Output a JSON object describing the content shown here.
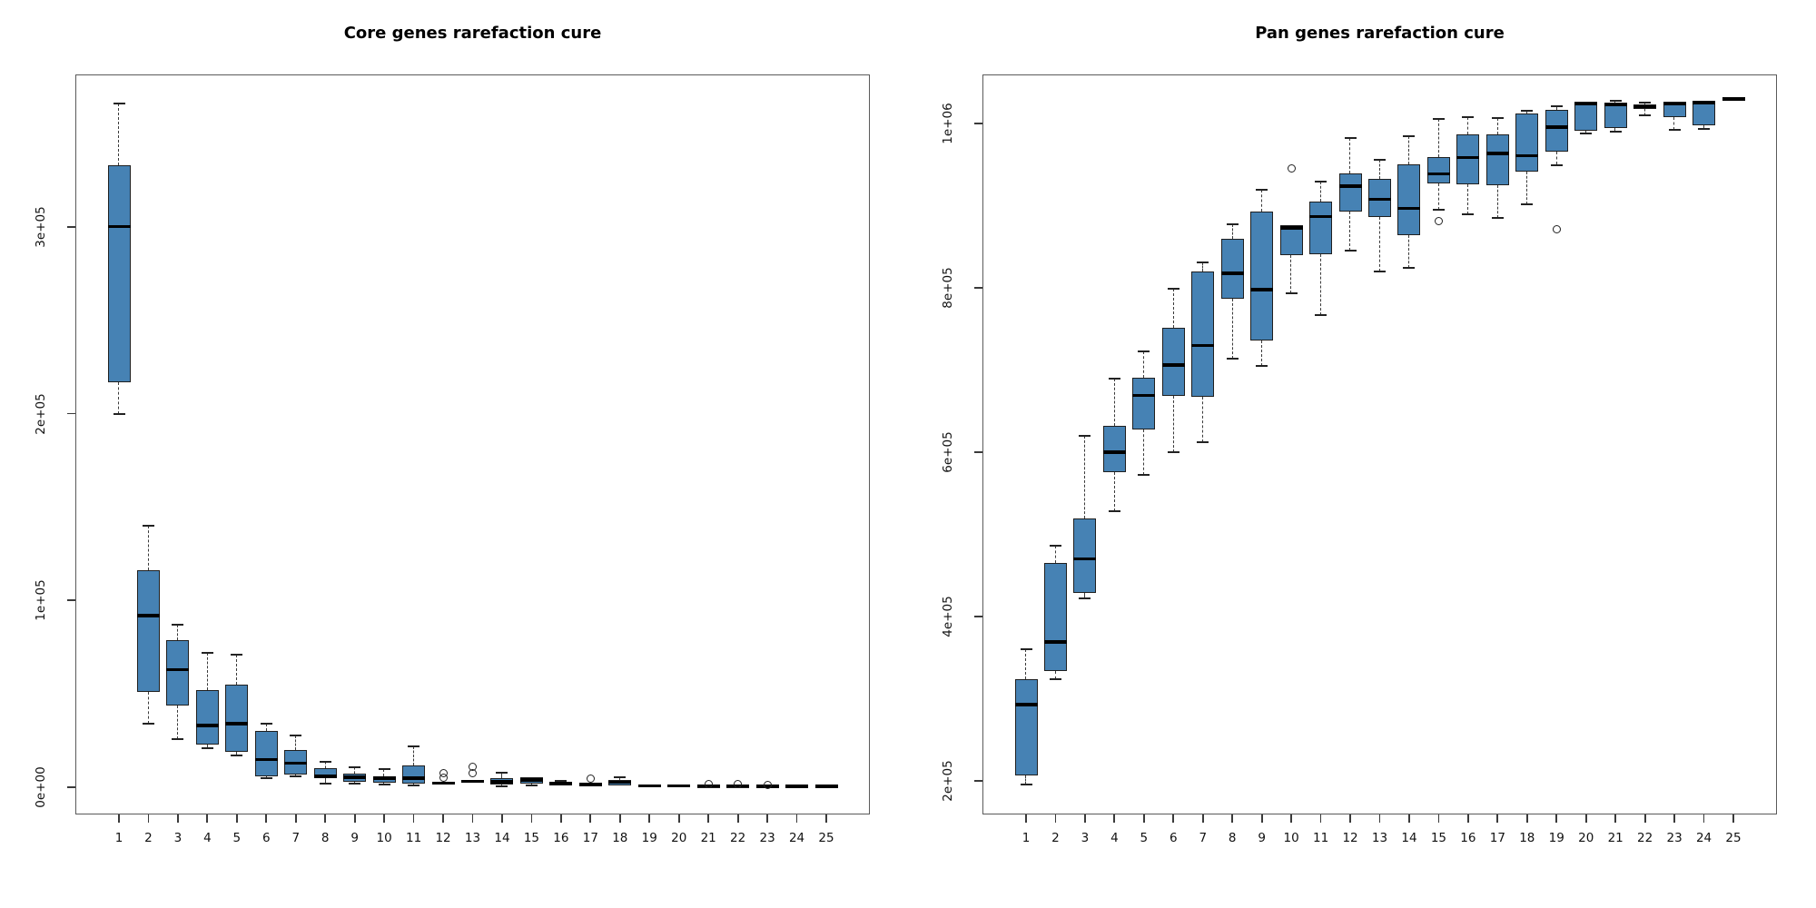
{
  "page": {
    "background": "#ffffff"
  },
  "chart_data": [
    {
      "type": "boxplot",
      "title": "Core genes rarefaction cure",
      "xlabel": "",
      "ylabel": "",
      "categories": [
        "1",
        "2",
        "3",
        "4",
        "5",
        "6",
        "7",
        "8",
        "9",
        "10",
        "11",
        "12",
        "13",
        "14",
        "15",
        "16",
        "17",
        "18",
        "19",
        "20",
        "21",
        "22",
        "23",
        "24",
        "25"
      ],
      "y_ticks": {
        "labels": [
          "0e+00",
          "1e+05",
          "2e+05",
          "3e+05"
        ],
        "values": [
          0,
          100000,
          200000,
          300000
        ]
      },
      "ylim": [
        -14500,
        381500
      ],
      "grid": false,
      "legend": "none",
      "colors": {
        "box_fill": "#4682B4",
        "box_border": "#1f1f1f",
        "median": "#000000",
        "whisker": "#3a3a3a",
        "frame": "#5a5a5a",
        "text": "#111111"
      },
      "series": [
        {
          "x": "1",
          "low": 200000,
          "q1": 217000,
          "med": 300000,
          "q3": 333000,
          "high": 366000,
          "outliers": []
        },
        {
          "x": "2",
          "low": 34000,
          "q1": 51000,
          "med": 92000,
          "q3": 116000,
          "high": 140000,
          "outliers": []
        },
        {
          "x": "3",
          "low": 26000,
          "q1": 44000,
          "med": 63000,
          "q3": 79000,
          "high": 87000,
          "outliers": []
        },
        {
          "x": "4",
          "low": 21000,
          "q1": 23000,
          "med": 33000,
          "q3": 52000,
          "high": 72000,
          "outliers": []
        },
        {
          "x": "5",
          "low": 17000,
          "q1": 19000,
          "med": 34000,
          "q3": 55000,
          "high": 71000,
          "outliers": []
        },
        {
          "x": "6",
          "low": 5000,
          "q1": 6000,
          "med": 15000,
          "q3": 30000,
          "high": 34000,
          "outliers": []
        },
        {
          "x": "7",
          "low": 6000,
          "q1": 7000,
          "med": 13000,
          "q3": 20000,
          "high": 28000,
          "outliers": []
        },
        {
          "x": "8",
          "low": 2000,
          "q1": 5000,
          "med": 6000,
          "q3": 10500,
          "high": 13500,
          "outliers": []
        },
        {
          "x": "9",
          "low": 2000,
          "q1": 3000,
          "med": 5500,
          "q3": 7500,
          "high": 11000,
          "outliers": []
        },
        {
          "x": "10",
          "low": 1500,
          "q1": 2500,
          "med": 5000,
          "q3": 6000,
          "high": 10000,
          "outliers": []
        },
        {
          "x": "11",
          "low": 1000,
          "q1": 2000,
          "med": 5000,
          "q3": 11500,
          "high": 22000,
          "outliers": []
        },
        {
          "x": "12",
          "low": 1500,
          "q1": 1800,
          "med": 2200,
          "q3": 2600,
          "high": 3000,
          "outliers": [
            7800,
            5000
          ]
        },
        {
          "x": "13",
          "low": 2500,
          "q1": 2800,
          "med": 3200,
          "q3": 4200,
          "high": 4800,
          "outliers": [
            11000,
            7800
          ]
        },
        {
          "x": "14",
          "low": 500,
          "q1": 1500,
          "med": 3000,
          "q3": 5000,
          "high": 7800,
          "outliers": []
        },
        {
          "x": "15",
          "low": 1000,
          "q1": 2000,
          "med": 4000,
          "q3": 5500,
          "high": 6000,
          "outliers": []
        },
        {
          "x": "16",
          "low": 1000,
          "q1": 1500,
          "med": 2000,
          "q3": 2500,
          "high": 3500,
          "outliers": []
        },
        {
          "x": "17",
          "low": 1200,
          "q1": 1400,
          "med": 1600,
          "q3": 1800,
          "high": 2000,
          "outliers": [
            4500
          ]
        },
        {
          "x": "18",
          "low": 500,
          "q1": 1000,
          "med": 2800,
          "q3": 4000,
          "high": 5500,
          "outliers": []
        },
        {
          "x": "19",
          "low": 600,
          "q1": 700,
          "med": 800,
          "q3": 900,
          "high": 1000,
          "outliers": []
        },
        {
          "x": "20",
          "low": 600,
          "q1": 700,
          "med": 800,
          "q3": 900,
          "high": 1000,
          "outliers": []
        },
        {
          "x": "21",
          "low": 500,
          "q1": 600,
          "med": 700,
          "q3": 800,
          "high": 900,
          "outliers": [
            2000
          ]
        },
        {
          "x": "22",
          "low": 500,
          "q1": 600,
          "med": 700,
          "q3": 800,
          "high": 900,
          "outliers": [
            2000
          ]
        },
        {
          "x": "23",
          "low": 400,
          "q1": 500,
          "med": 600,
          "q3": 700,
          "high": 800,
          "outliers": [
            1300
          ]
        },
        {
          "x": "24",
          "low": 400,
          "q1": 500,
          "med": 600,
          "q3": 700,
          "high": 800,
          "outliers": []
        },
        {
          "x": "25",
          "low": 300,
          "q1": 400,
          "med": 500,
          "q3": 600,
          "high": 700,
          "outliers": []
        }
      ]
    },
    {
      "type": "boxplot",
      "title": "Pan genes rarefaction cure",
      "xlabel": "",
      "ylabel": "",
      "categories": [
        "1",
        "2",
        "3",
        "4",
        "5",
        "6",
        "7",
        "8",
        "9",
        "10",
        "11",
        "12",
        "13",
        "14",
        "15",
        "16",
        "17",
        "18",
        "19",
        "20",
        "21",
        "22",
        "23",
        "24",
        "25"
      ],
      "y_ticks": {
        "labels": [
          "2e+05",
          "4e+05",
          "6e+05",
          "8e+05",
          "1e+06"
        ],
        "values": [
          200000,
          400000,
          600000,
          800000,
          1000000
        ]
      },
      "ylim": [
        159000,
        1060000
      ],
      "grid": false,
      "legend": "none",
      "colors": {
        "box_fill": "#4682B4",
        "box_border": "#1f1f1f",
        "median": "#000000",
        "whisker": "#3a3a3a",
        "frame": "#5a5a5a",
        "text": "#111111"
      },
      "series": [
        {
          "x": "1",
          "low": 195000,
          "q1": 207000,
          "med": 293000,
          "q3": 324000,
          "high": 360000,
          "outliers": []
        },
        {
          "x": "2",
          "low": 324000,
          "q1": 334000,
          "med": 369000,
          "q3": 465000,
          "high": 486000,
          "outliers": []
        },
        {
          "x": "3",
          "low": 422000,
          "q1": 429000,
          "med": 470000,
          "q3": 519000,
          "high": 620000,
          "outliers": []
        },
        {
          "x": "4",
          "low": 528000,
          "q1": 576000,
          "med": 600000,
          "q3": 632000,
          "high": 690000,
          "outliers": []
        },
        {
          "x": "5",
          "low": 572000,
          "q1": 628000,
          "med": 669000,
          "q3": 691000,
          "high": 723000,
          "outliers": []
        },
        {
          "x": "6",
          "low": 600000,
          "q1": 669000,
          "med": 706000,
          "q3": 752000,
          "high": 799000,
          "outliers": []
        },
        {
          "x": "7",
          "low": 612000,
          "q1": 667000,
          "med": 730000,
          "q3": 820000,
          "high": 831000,
          "outliers": []
        },
        {
          "x": "8",
          "low": 714000,
          "q1": 787000,
          "med": 818000,
          "q3": 860000,
          "high": 878000,
          "outliers": []
        },
        {
          "x": "9",
          "low": 705000,
          "q1": 736000,
          "med": 798000,
          "q3": 893000,
          "high": 920000,
          "outliers": []
        },
        {
          "x": "10",
          "low": 794000,
          "q1": 840000,
          "med": 873000,
          "q3": 877000,
          "high": 877000,
          "outliers": [
            946000
          ]
        },
        {
          "x": "11",
          "low": 767000,
          "q1": 841000,
          "med": 887000,
          "q3": 905000,
          "high": 929000,
          "outliers": []
        },
        {
          "x": "12",
          "low": 845000,
          "q1": 893000,
          "med": 924000,
          "q3": 939000,
          "high": 983000,
          "outliers": []
        },
        {
          "x": "13",
          "low": 820000,
          "q1": 886000,
          "med": 908000,
          "q3": 933000,
          "high": 956000,
          "outliers": []
        },
        {
          "x": "14",
          "low": 824000,
          "q1": 864000,
          "med": 897000,
          "q3": 951000,
          "high": 985000,
          "outliers": []
        },
        {
          "x": "15",
          "low": 895000,
          "q1": 927000,
          "med": 939000,
          "q3": 959000,
          "high": 1006000,
          "outliers": [
            882000
          ]
        },
        {
          "x": "16",
          "low": 890000,
          "q1": 926000,
          "med": 959000,
          "q3": 987000,
          "high": 1008000,
          "outliers": []
        },
        {
          "x": "17",
          "low": 885000,
          "q1": 925000,
          "med": 964000,
          "q3": 987000,
          "high": 1007000,
          "outliers": []
        },
        {
          "x": "18",
          "low": 902000,
          "q1": 942000,
          "med": 961000,
          "q3": 1012000,
          "high": 1016000,
          "outliers": []
        },
        {
          "x": "19",
          "low": 950000,
          "q1": 966000,
          "med": 996000,
          "q3": 1017000,
          "high": 1021000,
          "outliers": [
            872000
          ]
        },
        {
          "x": "20",
          "low": 988000,
          "q1": 992000,
          "med": 1024000,
          "q3": 1027000,
          "high": 1028000,
          "outliers": []
        },
        {
          "x": "21",
          "low": 990000,
          "q1": 995000,
          "med": 1023000,
          "q3": 1026000,
          "high": 1028000,
          "outliers": []
        },
        {
          "x": "22",
          "low": 1010000,
          "q1": 1018000,
          "med": 1021000,
          "q3": 1024000,
          "high": 1026000,
          "outliers": []
        },
        {
          "x": "23",
          "low": 993000,
          "q1": 1008000,
          "med": 1024000,
          "q3": 1027000,
          "high": 1028000,
          "outliers": []
        },
        {
          "x": "24",
          "low": 994000,
          "q1": 998000,
          "med": 1026000,
          "q3": 1028000,
          "high": 1029000,
          "outliers": []
        },
        {
          "x": "25",
          "low": 1028000,
          "q1": 1029000,
          "med": 1030000,
          "q3": 1030000,
          "high": 1031000,
          "outliers": []
        }
      ]
    }
  ]
}
